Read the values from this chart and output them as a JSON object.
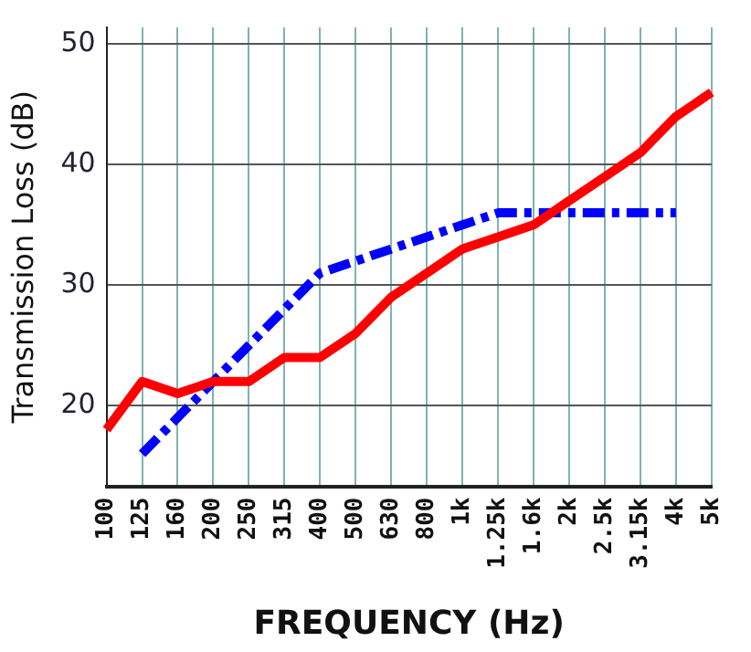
{
  "chart_data": {
    "type": "line",
    "xlabel": "FREQUENCY (Hz)",
    "ylabel": "Transmission Loss (dB)",
    "categories": [
      "100",
      "125",
      "160",
      "200",
      "250",
      "315",
      "400",
      "500",
      "630",
      "800",
      "1k",
      "1.25k",
      "1.6k",
      "2k",
      "2.5k",
      "3.15k",
      "4k",
      "5k"
    ],
    "series": [
      {
        "color": "#ff0000",
        "line_style": "solid",
        "values": [
          18,
          22,
          21,
          22,
          22,
          24,
          24,
          26,
          29,
          31,
          33,
          34,
          35,
          37,
          39,
          41,
          44,
          46
        ]
      },
      {
        "color": "#0000ff",
        "line_style": "dashed",
        "values": [
          null,
          16,
          19,
          22,
          25,
          28,
          31,
          32,
          33,
          34,
          35,
          36,
          36,
          36,
          36,
          36,
          36,
          null
        ]
      }
    ],
    "ylim": [
      13.3,
      51.4
    ],
    "yticks": [
      20,
      30,
      40,
      50
    ],
    "grid": true,
    "legend": false,
    "marker": "none"
  }
}
